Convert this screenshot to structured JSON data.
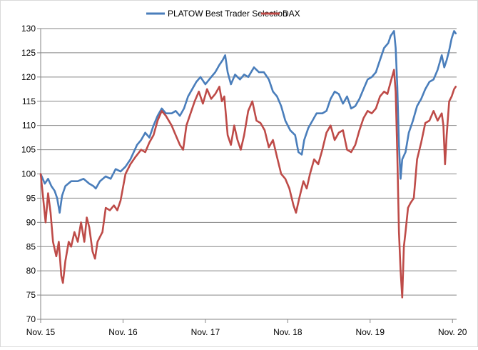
{
  "chart_data": {
    "type": "line",
    "title": "",
    "xlabel": "",
    "ylabel": "",
    "ylim": [
      70,
      130
    ],
    "yticks": [
      70,
      75,
      80,
      85,
      90,
      95,
      100,
      105,
      110,
      115,
      120,
      125,
      130
    ],
    "xlim": [
      2015.83,
      2020.88
    ],
    "xticks": [
      {
        "label": "Nov. 15",
        "value": 2015.83
      },
      {
        "label": "Nov. 16",
        "value": 2016.83
      },
      {
        "label": "Nov. 17",
        "value": 2017.83
      },
      {
        "label": "Nov. 18",
        "value": 2018.83
      },
      {
        "label": "Nov. 19",
        "value": 2019.83
      },
      {
        "label": "Nov. 20",
        "value": 2020.83
      }
    ],
    "grid": "horizontal",
    "legend_position": "top",
    "series": [
      {
        "name": "PLATOW Best Trader Selection",
        "color": "#4a7ebb",
        "points": [
          [
            2015.83,
            100
          ],
          [
            2015.88,
            98
          ],
          [
            2015.92,
            99
          ],
          [
            2015.96,
            97.5
          ],
          [
            2016.0,
            96.5
          ],
          [
            2016.03,
            95
          ],
          [
            2016.06,
            92
          ],
          [
            2016.09,
            95.5
          ],
          [
            2016.13,
            97.5
          ],
          [
            2016.2,
            98.5
          ],
          [
            2016.28,
            98.5
          ],
          [
            2016.35,
            99
          ],
          [
            2016.42,
            98
          ],
          [
            2016.47,
            97.5
          ],
          [
            2016.5,
            97
          ],
          [
            2016.55,
            98.5
          ],
          [
            2016.62,
            99.5
          ],
          [
            2016.68,
            99
          ],
          [
            2016.74,
            101
          ],
          [
            2016.8,
            100.5
          ],
          [
            2016.86,
            101.5
          ],
          [
            2016.92,
            103
          ],
          [
            2017.0,
            106
          ],
          [
            2017.05,
            107
          ],
          [
            2017.1,
            108.5
          ],
          [
            2017.15,
            107.5
          ],
          [
            2017.2,
            110
          ],
          [
            2017.25,
            112
          ],
          [
            2017.3,
            113.5
          ],
          [
            2017.35,
            112.5
          ],
          [
            2017.42,
            112.5
          ],
          [
            2017.47,
            113
          ],
          [
            2017.52,
            112
          ],
          [
            2017.57,
            113.5
          ],
          [
            2017.62,
            116
          ],
          [
            2017.67,
            117.5
          ],
          [
            2017.72,
            119
          ],
          [
            2017.77,
            120
          ],
          [
            2017.83,
            118.5
          ],
          [
            2017.9,
            120
          ],
          [
            2017.95,
            121
          ],
          [
            2018.0,
            122.5
          ],
          [
            2018.04,
            123.5
          ],
          [
            2018.07,
            124.5
          ],
          [
            2018.1,
            121
          ],
          [
            2018.14,
            118.5
          ],
          [
            2018.19,
            120.5
          ],
          [
            2018.25,
            119.5
          ],
          [
            2018.3,
            120.5
          ],
          [
            2018.35,
            120
          ],
          [
            2018.42,
            122
          ],
          [
            2018.48,
            121
          ],
          [
            2018.54,
            121
          ],
          [
            2018.6,
            119.5
          ],
          [
            2018.65,
            117
          ],
          [
            2018.7,
            116
          ],
          [
            2018.75,
            114
          ],
          [
            2018.8,
            111
          ],
          [
            2018.86,
            109
          ],
          [
            2018.92,
            108
          ],
          [
            2018.96,
            104.5
          ],
          [
            2019.0,
            104
          ],
          [
            2019.03,
            107
          ],
          [
            2019.08,
            109.5
          ],
          [
            2019.13,
            111
          ],
          [
            2019.18,
            112.5
          ],
          [
            2019.25,
            112.5
          ],
          [
            2019.3,
            113
          ],
          [
            2019.35,
            115.5
          ],
          [
            2019.4,
            117
          ],
          [
            2019.45,
            116.5
          ],
          [
            2019.5,
            114.5
          ],
          [
            2019.55,
            116
          ],
          [
            2019.6,
            113.5
          ],
          [
            2019.65,
            114
          ],
          [
            2019.7,
            115.5
          ],
          [
            2019.75,
            117.5
          ],
          [
            2019.8,
            119.5
          ],
          [
            2019.85,
            120
          ],
          [
            2019.9,
            121
          ],
          [
            2019.95,
            123.5
          ],
          [
            2020.0,
            126
          ],
          [
            2020.05,
            127
          ],
          [
            2020.08,
            128.5
          ],
          [
            2020.12,
            129.5
          ],
          [
            2020.14,
            126
          ],
          [
            2020.16,
            118
          ],
          [
            2020.18,
            106
          ],
          [
            2020.2,
            99
          ],
          [
            2020.22,
            103
          ],
          [
            2020.26,
            104.5
          ],
          [
            2020.3,
            108.5
          ],
          [
            2020.35,
            111
          ],
          [
            2020.4,
            114
          ],
          [
            2020.45,
            115.5
          ],
          [
            2020.5,
            117.5
          ],
          [
            2020.55,
            119
          ],
          [
            2020.6,
            119.5
          ],
          [
            2020.65,
            121.5
          ],
          [
            2020.7,
            124.5
          ],
          [
            2020.73,
            122
          ],
          [
            2020.76,
            123.5
          ],
          [
            2020.79,
            125.5
          ],
          [
            2020.82,
            128
          ],
          [
            2020.85,
            129.5
          ],
          [
            2020.87,
            129
          ]
        ]
      },
      {
        "name": "DAX",
        "color": "#be4b48",
        "points": [
          [
            2015.83,
            100
          ],
          [
            2015.86,
            95
          ],
          [
            2015.89,
            90
          ],
          [
            2015.92,
            96
          ],
          [
            2015.95,
            92
          ],
          [
            2015.98,
            86
          ],
          [
            2016.02,
            83
          ],
          [
            2016.05,
            86
          ],
          [
            2016.08,
            79
          ],
          [
            2016.1,
            77.5
          ],
          [
            2016.13,
            82
          ],
          [
            2016.17,
            86
          ],
          [
            2016.2,
            85
          ],
          [
            2016.24,
            88
          ],
          [
            2016.28,
            86
          ],
          [
            2016.32,
            90
          ],
          [
            2016.36,
            86
          ],
          [
            2016.39,
            91
          ],
          [
            2016.42,
            89
          ],
          [
            2016.46,
            84
          ],
          [
            2016.49,
            82.5
          ],
          [
            2016.52,
            86
          ],
          [
            2016.55,
            87
          ],
          [
            2016.58,
            88
          ],
          [
            2016.62,
            93
          ],
          [
            2016.67,
            92.5
          ],
          [
            2016.72,
            93.5
          ],
          [
            2016.76,
            92.5
          ],
          [
            2016.8,
            94.5
          ],
          [
            2016.86,
            100
          ],
          [
            2016.92,
            102
          ],
          [
            2016.98,
            103.5
          ],
          [
            2017.05,
            105
          ],
          [
            2017.1,
            104.5
          ],
          [
            2017.15,
            106.5
          ],
          [
            2017.2,
            108
          ],
          [
            2017.25,
            111
          ],
          [
            2017.3,
            113
          ],
          [
            2017.35,
            112
          ],
          [
            2017.42,
            110
          ],
          [
            2017.47,
            108
          ],
          [
            2017.52,
            106
          ],
          [
            2017.56,
            105
          ],
          [
            2017.6,
            110
          ],
          [
            2017.65,
            112.5
          ],
          [
            2017.7,
            115
          ],
          [
            2017.75,
            117
          ],
          [
            2017.8,
            114.5
          ],
          [
            2017.85,
            117.5
          ],
          [
            2017.9,
            115.5
          ],
          [
            2017.95,
            116.5
          ],
          [
            2018.0,
            118
          ],
          [
            2018.03,
            115
          ],
          [
            2018.06,
            116
          ],
          [
            2018.1,
            108
          ],
          [
            2018.14,
            106
          ],
          [
            2018.18,
            110
          ],
          [
            2018.22,
            107
          ],
          [
            2018.26,
            105
          ],
          [
            2018.3,
            108
          ],
          [
            2018.35,
            113
          ],
          [
            2018.4,
            115
          ],
          [
            2018.45,
            111
          ],
          [
            2018.5,
            110.5
          ],
          [
            2018.55,
            109
          ],
          [
            2018.6,
            105.5
          ],
          [
            2018.65,
            107
          ],
          [
            2018.7,
            103.5
          ],
          [
            2018.75,
            100
          ],
          [
            2018.8,
            99
          ],
          [
            2018.85,
            97
          ],
          [
            2018.9,
            93.5
          ],
          [
            2018.93,
            92
          ],
          [
            2018.97,
            95
          ],
          [
            2019.02,
            98.5
          ],
          [
            2019.06,
            97
          ],
          [
            2019.1,
            100
          ],
          [
            2019.15,
            103
          ],
          [
            2019.2,
            102
          ],
          [
            2019.25,
            105
          ],
          [
            2019.3,
            108.5
          ],
          [
            2019.35,
            110
          ],
          [
            2019.4,
            107
          ],
          [
            2019.45,
            108.5
          ],
          [
            2019.5,
            109
          ],
          [
            2019.55,
            105
          ],
          [
            2019.6,
            104.5
          ],
          [
            2019.65,
            106
          ],
          [
            2019.7,
            109
          ],
          [
            2019.75,
            111.5
          ],
          [
            2019.8,
            113
          ],
          [
            2019.85,
            112.5
          ],
          [
            2019.9,
            113.5
          ],
          [
            2019.95,
            116
          ],
          [
            2020.0,
            117
          ],
          [
            2020.04,
            116.5
          ],
          [
            2020.08,
            119
          ],
          [
            2020.12,
            121.5
          ],
          [
            2020.14,
            117
          ],
          [
            2020.16,
            104
          ],
          [
            2020.18,
            88
          ],
          [
            2020.2,
            80
          ],
          [
            2020.22,
            74.5
          ],
          [
            2020.24,
            85
          ],
          [
            2020.26,
            88
          ],
          [
            2020.29,
            93
          ],
          [
            2020.32,
            94
          ],
          [
            2020.36,
            95
          ],
          [
            2020.4,
            103
          ],
          [
            2020.45,
            106.5
          ],
          [
            2020.5,
            110.5
          ],
          [
            2020.55,
            111
          ],
          [
            2020.6,
            113
          ],
          [
            2020.65,
            111
          ],
          [
            2020.7,
            112.5
          ],
          [
            2020.72,
            110
          ],
          [
            2020.74,
            102
          ],
          [
            2020.76,
            108
          ],
          [
            2020.79,
            115
          ],
          [
            2020.82,
            116
          ],
          [
            2020.85,
            117.5
          ],
          [
            2020.87,
            118
          ]
        ]
      }
    ]
  }
}
